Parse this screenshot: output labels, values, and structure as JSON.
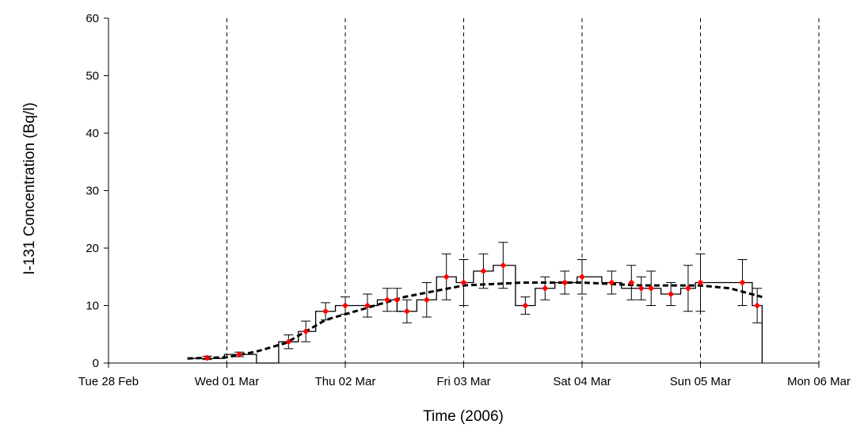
{
  "chart_data": {
    "type": "line",
    "xlabel": "Time (2006)",
    "ylabel": "I-131 Concentration (Bq/l)",
    "ylim": [
      0,
      60
    ],
    "yticks": [
      0,
      10,
      20,
      30,
      40,
      50,
      60
    ],
    "xlim": [
      "2006-02-28T00:00",
      "2006-03-06T00:00"
    ],
    "xticks": [
      {
        "date": "2006-02-28T00:00",
        "label": "Tue 28 Feb"
      },
      {
        "date": "2006-03-01T00:00",
        "label": "Wed 01 Mar"
      },
      {
        "date": "2006-03-02T00:00",
        "label": "Thu 02 Mar"
      },
      {
        "date": "2006-03-03T00:00",
        "label": "Fri 03 Mar"
      },
      {
        "date": "2006-03-04T00:00",
        "label": "Sat 04 Mar"
      },
      {
        "date": "2006-03-05T00:00",
        "label": "Sun 05 Mar"
      },
      {
        "date": "2006-03-06T00:00",
        "label": "Mon 06 Mar"
      }
    ],
    "grid": "vertical dashed at day boundaries",
    "series": [
      {
        "style": "step",
        "color": "#000000",
        "steps": [
          {
            "start": "2006-02-28T16:00",
            "end": "2006-02-28T23:30",
            "value": 0.8
          },
          {
            "start": "2006-02-28T23:30",
            "end": "2006-03-01T06:00",
            "value": 1.5
          },
          {
            "start": "2006-03-01T06:00",
            "end": "2006-03-01T10:30",
            "value": 0
          },
          {
            "start": "2006-03-01T10:30",
            "end": "2006-03-01T14:30",
            "value": 3.7
          },
          {
            "start": "2006-03-01T14:30",
            "end": "2006-03-01T18:00",
            "value": 5.5
          },
          {
            "start": "2006-03-01T18:00",
            "end": "2006-03-01T22:00",
            "value": 9
          },
          {
            "start": "2006-03-01T22:00",
            "end": "2006-03-02T02:30",
            "value": 10
          },
          {
            "start": "2006-03-02T02:30",
            "end": "2006-03-02T06:30",
            "value": 10
          },
          {
            "start": "2006-03-02T06:30",
            "end": "2006-03-02T10:30",
            "value": 11
          },
          {
            "start": "2006-03-02T10:30",
            "end": "2006-03-02T14:30",
            "value": 9
          },
          {
            "start": "2006-03-02T14:30",
            "end": "2006-03-02T18:30",
            "value": 11
          },
          {
            "start": "2006-03-02T18:30",
            "end": "2006-03-02T22:30",
            "value": 15
          },
          {
            "start": "2006-03-02T22:30",
            "end": "2006-03-03T02:00",
            "value": 14
          },
          {
            "start": "2006-03-03T02:00",
            "end": "2006-03-03T06:00",
            "value": 16
          },
          {
            "start": "2006-03-03T06:00",
            "end": "2006-03-03T10:30",
            "value": 17
          },
          {
            "start": "2006-03-03T10:30",
            "end": "2006-03-03T14:30",
            "value": 10
          },
          {
            "start": "2006-03-03T14:30",
            "end": "2006-03-03T18:30",
            "value": 13
          },
          {
            "start": "2006-03-03T18:30",
            "end": "2006-03-03T23:00",
            "value": 14
          },
          {
            "start": "2006-03-03T23:00",
            "end": "2006-03-04T04:00",
            "value": 15
          },
          {
            "start": "2006-03-04T04:00",
            "end": "2006-03-04T08:00",
            "value": 14
          },
          {
            "start": "2006-03-04T08:00",
            "end": "2006-03-04T12:00",
            "value": 13
          },
          {
            "start": "2006-03-04T12:00",
            "end": "2006-03-04T16:00",
            "value": 13
          },
          {
            "start": "2006-03-04T16:00",
            "end": "2006-03-04T20:00",
            "value": 12
          },
          {
            "start": "2006-03-04T20:00",
            "end": "2006-03-04T23:00",
            "value": 13
          },
          {
            "start": "2006-03-04T23:00",
            "end": "2006-03-05T07:00",
            "value": 14
          },
          {
            "start": "2006-03-05T07:00",
            "end": "2006-03-05T10:30",
            "value": 14
          },
          {
            "start": "2006-03-05T10:30",
            "end": "2006-03-05T12:30",
            "value": 10
          }
        ]
      },
      {
        "style": "points-with-error-bars",
        "color": "#ff0000",
        "points": [
          {
            "x": "2006-02-28T20:00",
            "y": 0.9,
            "err": 0.3
          },
          {
            "x": "2006-03-01T02:30",
            "y": 1.5,
            "err": 0.4
          },
          {
            "x": "2006-03-01T12:30",
            "y": 3.7,
            "err": 1.2
          },
          {
            "x": "2006-03-01T16:00",
            "y": 5.5,
            "err": 1.8
          },
          {
            "x": "2006-03-01T20:00",
            "y": 9,
            "err": 1.5
          },
          {
            "x": "2006-03-02T00:00",
            "y": 10,
            "err": 1.5
          },
          {
            "x": "2006-03-02T04:30",
            "y": 10,
            "err": 2
          },
          {
            "x": "2006-03-02T08:30",
            "y": 11,
            "err": 2
          },
          {
            "x": "2006-03-02T10:30",
            "y": 11,
            "err": 2
          },
          {
            "x": "2006-03-02T12:30",
            "y": 9,
            "err": 2
          },
          {
            "x": "2006-03-02T16:30",
            "y": 11,
            "err": 3
          },
          {
            "x": "2006-03-02T20:30",
            "y": 15,
            "err": 4
          },
          {
            "x": "2006-03-03T00:00",
            "y": 14,
            "err": 4
          },
          {
            "x": "2006-03-03T04:00",
            "y": 16,
            "err": 3
          },
          {
            "x": "2006-03-03T08:00",
            "y": 17,
            "err": 4
          },
          {
            "x": "2006-03-03T12:30",
            "y": 10,
            "err": 1.5
          },
          {
            "x": "2006-03-03T16:30",
            "y": 13,
            "err": 2
          },
          {
            "x": "2006-03-03T20:30",
            "y": 14,
            "err": 2
          },
          {
            "x": "2006-03-04T00:00",
            "y": 15,
            "err": 3
          },
          {
            "x": "2006-03-04T06:00",
            "y": 14,
            "err": 2
          },
          {
            "x": "2006-03-04T10:00",
            "y": 14,
            "err": 3
          },
          {
            "x": "2006-03-04T12:00",
            "y": 13,
            "err": 2
          },
          {
            "x": "2006-03-04T14:00",
            "y": 13,
            "err": 3
          },
          {
            "x": "2006-03-04T18:00",
            "y": 12,
            "err": 2
          },
          {
            "x": "2006-03-04T21:30",
            "y": 13,
            "err": 4
          },
          {
            "x": "2006-03-05T00:00",
            "y": 14,
            "err": 5
          },
          {
            "x": "2006-03-05T08:30",
            "y": 14,
            "err": 4
          },
          {
            "x": "2006-03-05T11:30",
            "y": 10,
            "err": 3
          }
        ]
      },
      {
        "style": "dashed",
        "color": "#000000",
        "points": [
          {
            "x": "2006-02-28T16:00",
            "y": 0.8
          },
          {
            "x": "2006-03-01T00:00",
            "y": 1
          },
          {
            "x": "2006-03-01T06:00",
            "y": 2
          },
          {
            "x": "2006-03-01T12:00",
            "y": 3.5
          },
          {
            "x": "2006-03-01T16:00",
            "y": 5.5
          },
          {
            "x": "2006-03-01T20:00",
            "y": 7.5
          },
          {
            "x": "2006-03-02T00:00",
            "y": 8.5
          },
          {
            "x": "2006-03-02T06:00",
            "y": 10
          },
          {
            "x": "2006-03-02T12:00",
            "y": 11.5
          },
          {
            "x": "2006-03-02T18:00",
            "y": 12.5
          },
          {
            "x": "2006-03-03T00:00",
            "y": 13.5
          },
          {
            "x": "2006-03-03T12:00",
            "y": 14
          },
          {
            "x": "2006-03-04T00:00",
            "y": 14
          },
          {
            "x": "2006-03-04T12:00",
            "y": 13.5
          },
          {
            "x": "2006-03-05T00:00",
            "y": 13.5
          },
          {
            "x": "2006-03-05T06:00",
            "y": 13
          },
          {
            "x": "2006-03-05T12:30",
            "y": 11.5
          }
        ]
      }
    ]
  }
}
